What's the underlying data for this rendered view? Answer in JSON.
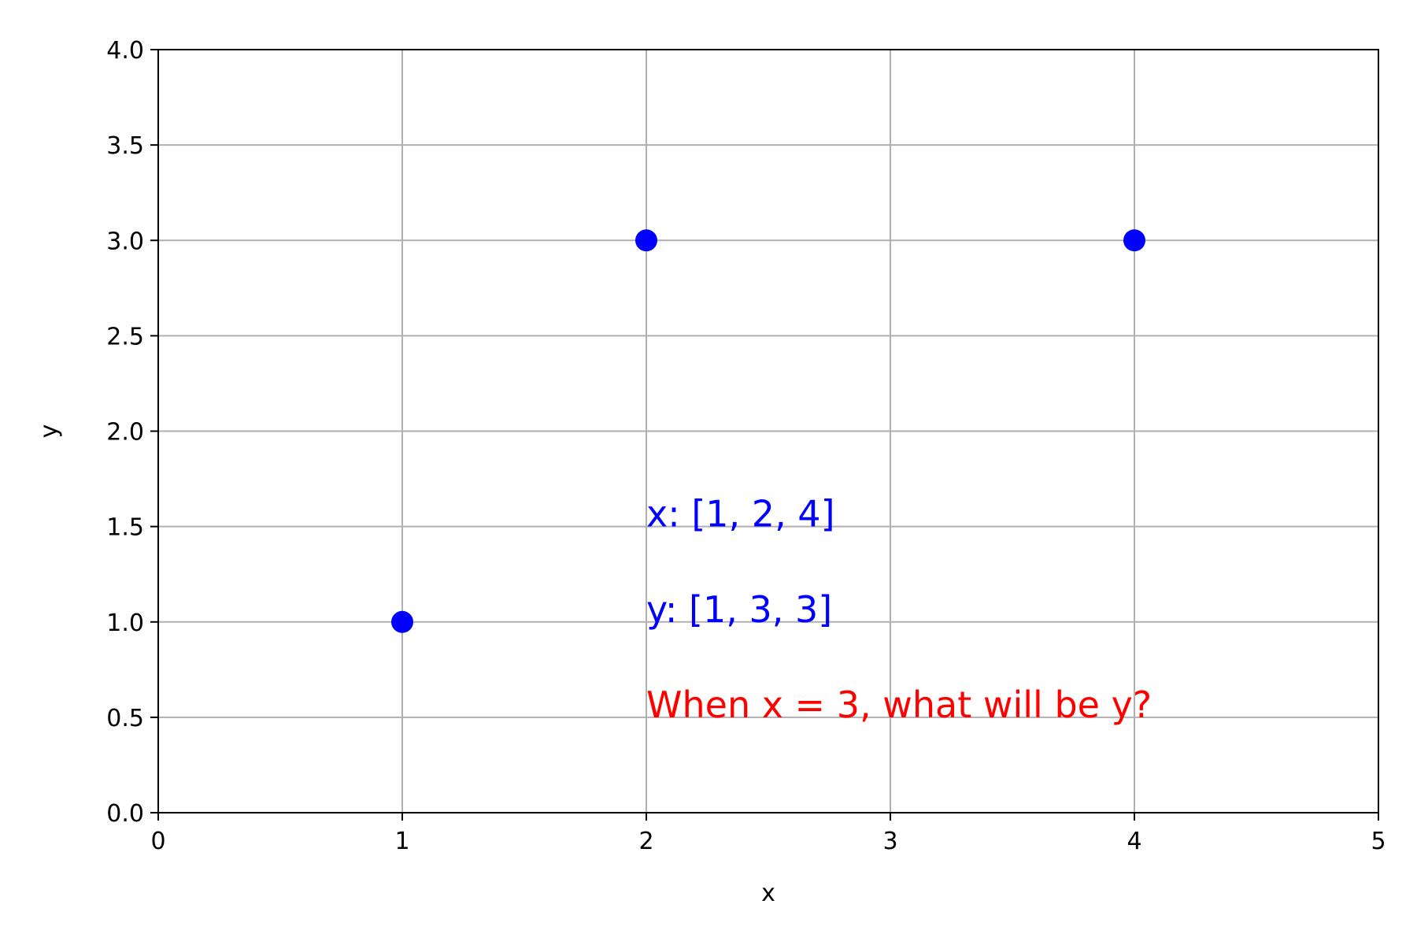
{
  "chart_data": {
    "type": "scatter",
    "title": "",
    "xlabel": "x",
    "ylabel": "y",
    "xlim": [
      0,
      5
    ],
    "ylim": [
      0,
      4.0
    ],
    "x_ticks": [
      "0",
      "1",
      "2",
      "3",
      "4",
      "5"
    ],
    "y_ticks": [
      "0.0",
      "0.5",
      "1.0",
      "1.5",
      "2.0",
      "2.5",
      "3.0",
      "3.5",
      "4.0"
    ],
    "grid": true,
    "series": [
      {
        "x": [
          1,
          2,
          4
        ],
        "y": [
          1,
          3,
          3
        ],
        "color": "#0000ff",
        "marker": "circle"
      }
    ],
    "annotations": [
      {
        "text": "x: [1, 2, 4]",
        "x": 2,
        "y": 1.5,
        "color": "#0000ff"
      },
      {
        "text": "y: [1, 3, 3]",
        "x": 2,
        "y": 1.0,
        "color": "#0000ff"
      },
      {
        "text": "When x = 3, what will be y?",
        "x": 2,
        "y": 0.5,
        "color": "#ff0000"
      }
    ]
  }
}
